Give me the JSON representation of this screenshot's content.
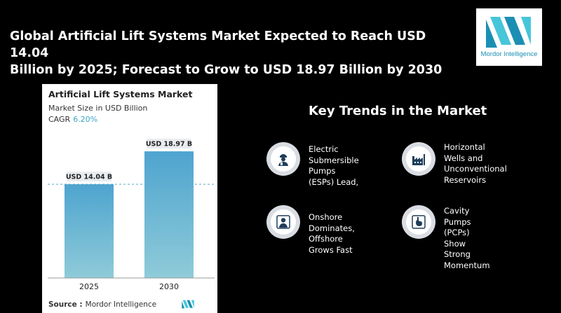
{
  "headline": {
    "line1": "Global Artificial Lift Systems Market Expected to Reach USD 14.04",
    "line2": "Billion by 2025; Forecast to Grow to USD 18.97 Billion by 2030"
  },
  "logo": {
    "text": "Mordor Intelligence",
    "color": "#1b8fb3",
    "accent": "#47c6d9"
  },
  "card": {
    "title": "Artificial Lift Systems Market",
    "subtitle": "Market Size in USD Billion",
    "cagr_label": "CAGR",
    "cagr_value": "6.20%",
    "source_label": "Source :",
    "source_value": "Mordor Intelligence"
  },
  "chart_data": {
    "type": "bar",
    "title": "Artificial Lift Systems Market",
    "subtitle": "Market Size in USD Billion",
    "categories": [
      "2025",
      "2030"
    ],
    "values": [
      14.04,
      18.97
    ],
    "data_labels": [
      "USD 14.04 B",
      "USD 18.97 B"
    ],
    "unit": "USD Billion",
    "cagr": "6.20%",
    "ylim": [
      0,
      21.5
    ],
    "grid": false,
    "reference_line": 14.04,
    "bar_color_top": "#4ea4cf",
    "bar_color_bottom": "#8fcbd9"
  },
  "trends": {
    "title": "Key Trends in the Market",
    "items": [
      {
        "line1": "Electric Submersible",
        "line2": "Pumps (ESPs) Lead,",
        "line3": "",
        "icon": "worker-icon"
      },
      {
        "line1": "Horizontal Wells and",
        "line2": "Unconventional",
        "line3": "Reservoirs",
        "icon": "factory-icon"
      },
      {
        "line1": "Onshore Dominates,",
        "line2": "Offshore Grows Fast",
        "line3": "",
        "icon": "person-icon"
      },
      {
        "line1": "Cavity Pumps (PCPs)",
        "line2": "Show Strong",
        "line3": "Momentum",
        "icon": "stomach-icon"
      }
    ]
  }
}
